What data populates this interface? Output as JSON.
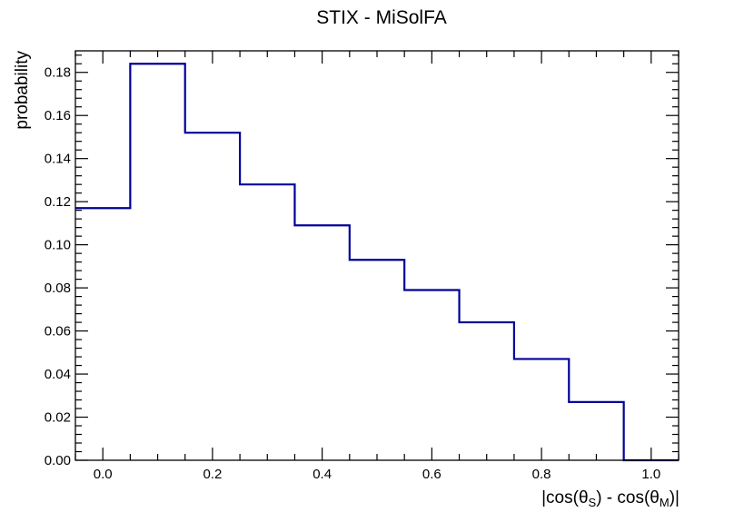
{
  "chart_data": {
    "type": "histogram",
    "title": "STIX - MiSolFA",
    "xlabel": "|cos(θS) - cos(θM)|",
    "xlabel_parts": {
      "open": "|cos(θ",
      "sub1": "S",
      "mid": ") - cos(θ",
      "sub2": "M",
      "close": ")|"
    },
    "ylabel": "probability",
    "xlim": [
      -0.05,
      1.05
    ],
    "ylim": [
      0,
      0.19
    ],
    "bin_edges": [
      -0.05,
      0.05,
      0.15,
      0.25,
      0.35,
      0.45,
      0.55,
      0.65,
      0.75,
      0.85,
      0.95,
      1.05
    ],
    "values": [
      0.117,
      0.184,
      0.152,
      0.128,
      0.109,
      0.093,
      0.079,
      0.064,
      0.047,
      0.027,
      0.0
    ],
    "x_ticks": [
      "0.0",
      "0.2",
      "0.4",
      "0.6",
      "0.8",
      "1.0"
    ],
    "y_ticks": [
      "0.00",
      "0.02",
      "0.04",
      "0.06",
      "0.08",
      "0.10",
      "0.12",
      "0.14",
      "0.16",
      "0.18"
    ],
    "line_color": "#000099",
    "grid": false
  }
}
